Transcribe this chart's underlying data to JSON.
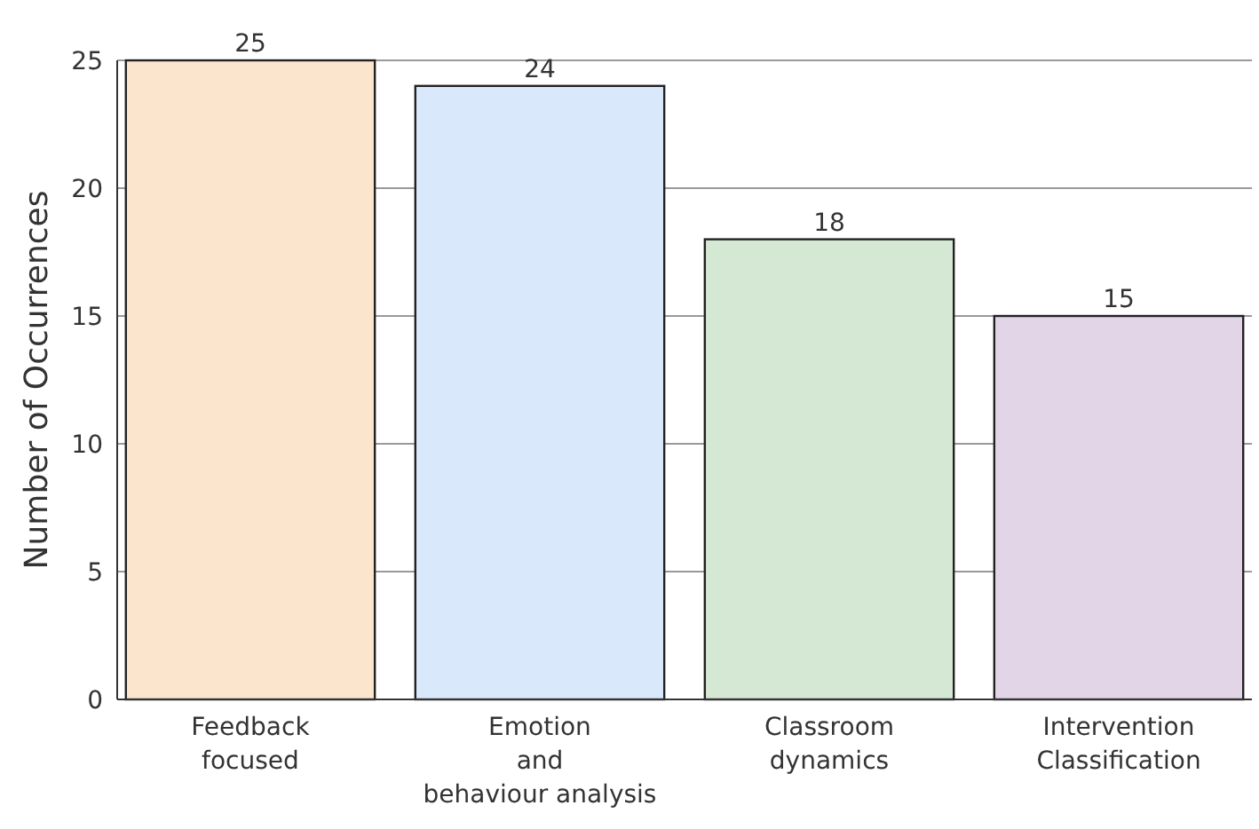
{
  "chart_data": {
    "type": "bar",
    "ylabel": "Number of Occurrences",
    "categories": [
      "Feedback\nfocused",
      "Emotion\nand\nbehaviour analysis",
      "Classroom\ndynamics",
      "Intervention\nClassification"
    ],
    "values": [
      25,
      24,
      18,
      15
    ],
    "colors": [
      "#fce5cd",
      "#dae8fc",
      "#d5e8d4",
      "#e1d5e7"
    ],
    "ylim": [
      0,
      25
    ],
    "yticks": [
      0,
      5,
      10,
      15,
      20,
      25
    ],
    "grid": "y",
    "data_labels": true
  }
}
